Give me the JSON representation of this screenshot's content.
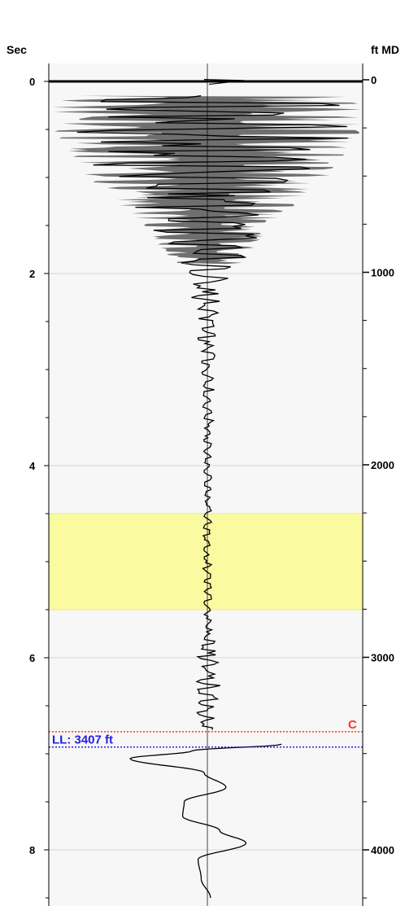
{
  "chart_data": {
    "type": "line",
    "title": "",
    "left_axis": {
      "title": "Sec",
      "ticks": [
        "0",
        "2",
        "4",
        "6",
        "8"
      ],
      "tick_values": [
        0,
        2,
        4,
        6,
        8
      ],
      "range": [
        -0.2,
        8.65
      ]
    },
    "right_axis": {
      "title": "ft MD",
      "ticks": [
        "0",
        "1000",
        "2000",
        "3000",
        "4000"
      ],
      "tick_values": [
        0,
        1000,
        2000,
        3000,
        4000
      ]
    },
    "grid": true,
    "highlight_band": {
      "from": 4.5,
      "to": 5.5,
      "color": "#fafaa0"
    },
    "markers": [
      {
        "label": "C",
        "time": 6.77,
        "color": "#ff3333",
        "style": "dotted"
      },
      {
        "label": "LL: 3407 ft",
        "time": 6.93,
        "color": "#2222dd",
        "style": "dotted"
      }
    ],
    "trace_envelope": {
      "time": [
        0.15,
        0.5,
        1.0,
        1.5,
        2.0,
        2.5,
        3.0,
        3.5,
        4.0,
        4.5,
        5.0,
        5.5,
        6.0,
        6.5,
        6.7
      ],
      "amplitude": [
        1.0,
        1.0,
        0.78,
        0.42,
        0.17,
        0.07,
        0.05,
        0.04,
        0.03,
        0.03,
        0.03,
        0.03,
        0.07,
        0.1,
        0.04
      ]
    },
    "wavelet": {
      "time": [
        6.9,
        6.97,
        7.05,
        7.2,
        7.35,
        7.5,
        7.65,
        7.8,
        7.93,
        8.1,
        8.3,
        8.5
      ],
      "amplitude": [
        0.48,
        -0.1,
        -0.5,
        -0.02,
        0.12,
        -0.15,
        -0.16,
        0.08,
        0.25,
        -0.06,
        -0.04,
        0.02
      ]
    }
  }
}
